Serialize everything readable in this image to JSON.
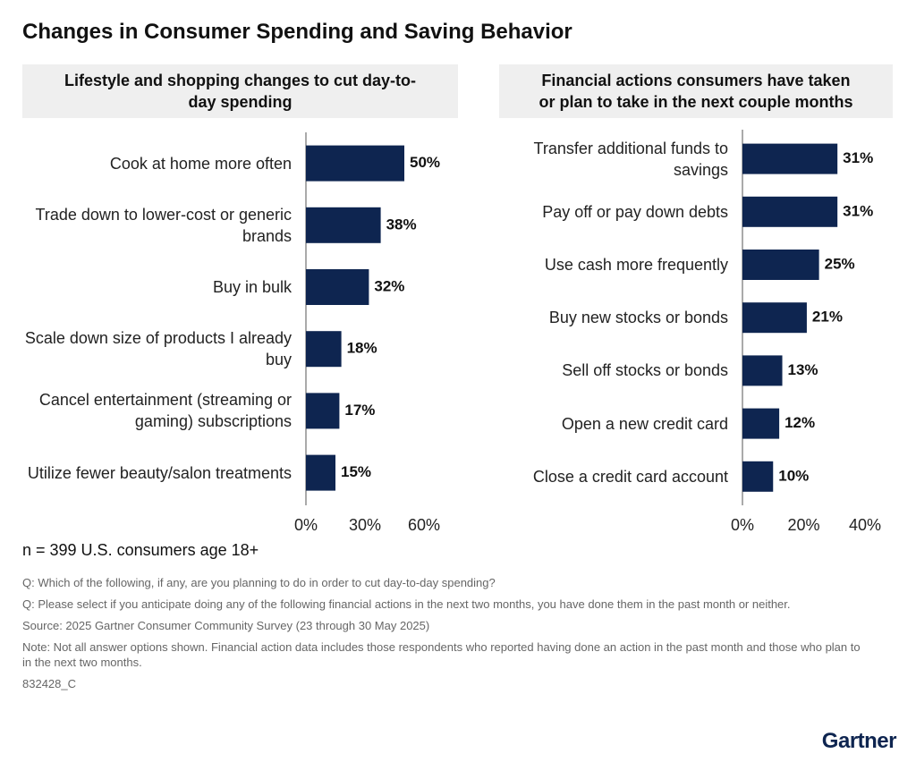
{
  "title": "Changes in Consumer Spending and Saving Behavior",
  "sample": "n = 399 U.S. consumers age 18+",
  "notes": [
    "Q: Which of the following, if any, are you planning to do in order to cut day-to-day spending?",
    "Q: Please select if you anticipate doing any of the following financial actions in the next two months, you have done them in the past month or neither.",
    "Source: 2025 Gartner Consumer Community Survey (23 through 30 May 2025)",
    "Note: Not all answer options shown. Financial action data includes those respondents who reported having done an action in the past month and those who plan to in the next two months.",
    "832428_C"
  ],
  "logo": "Gartner",
  "chart_data": [
    {
      "type": "hbar",
      "title": "Lifestyle and shopping changes to cut day-to-day spending",
      "categories": [
        "Cook at home more often",
        "Trade down to lower-cost or generic brands",
        "Buy in bulk",
        "Scale down size of products I already buy",
        "Cancel entertainment (streaming or gaming) subscriptions",
        "Utilize fewer beauty/salon treatments"
      ],
      "values": [
        50,
        38,
        32,
        18,
        17,
        15
      ],
      "value_labels": [
        "50%",
        "38%",
        "32%",
        "18%",
        "17%",
        "15%"
      ],
      "color": "#0e2550",
      "xlim": [
        0,
        60
      ],
      "xticks": [
        {
          "value": 0,
          "label": "0%"
        },
        {
          "value": 30,
          "label": "30%"
        },
        {
          "value": 60,
          "label": "60%"
        }
      ]
    },
    {
      "type": "hbar",
      "title": "Financial actions consumers have taken or plan to take in the next couple months",
      "categories": [
        "Transfer additional funds to savings",
        "Pay off or pay down debts",
        "Use cash more frequently",
        "Buy new stocks or bonds",
        "Sell off stocks or bonds",
        "Open a new credit card",
        "Close a credit card account"
      ],
      "values": [
        31,
        31,
        25,
        21,
        13,
        12,
        10
      ],
      "value_labels": [
        "31%",
        "31%",
        "25%",
        "21%",
        "13%",
        "12%",
        "10%"
      ],
      "color": "#0e2550",
      "xlim": [
        0,
        40
      ],
      "xticks": [
        {
          "value": 0,
          "label": "0%"
        },
        {
          "value": 20,
          "label": "20%"
        },
        {
          "value": 40,
          "label": "40%"
        }
      ]
    }
  ]
}
